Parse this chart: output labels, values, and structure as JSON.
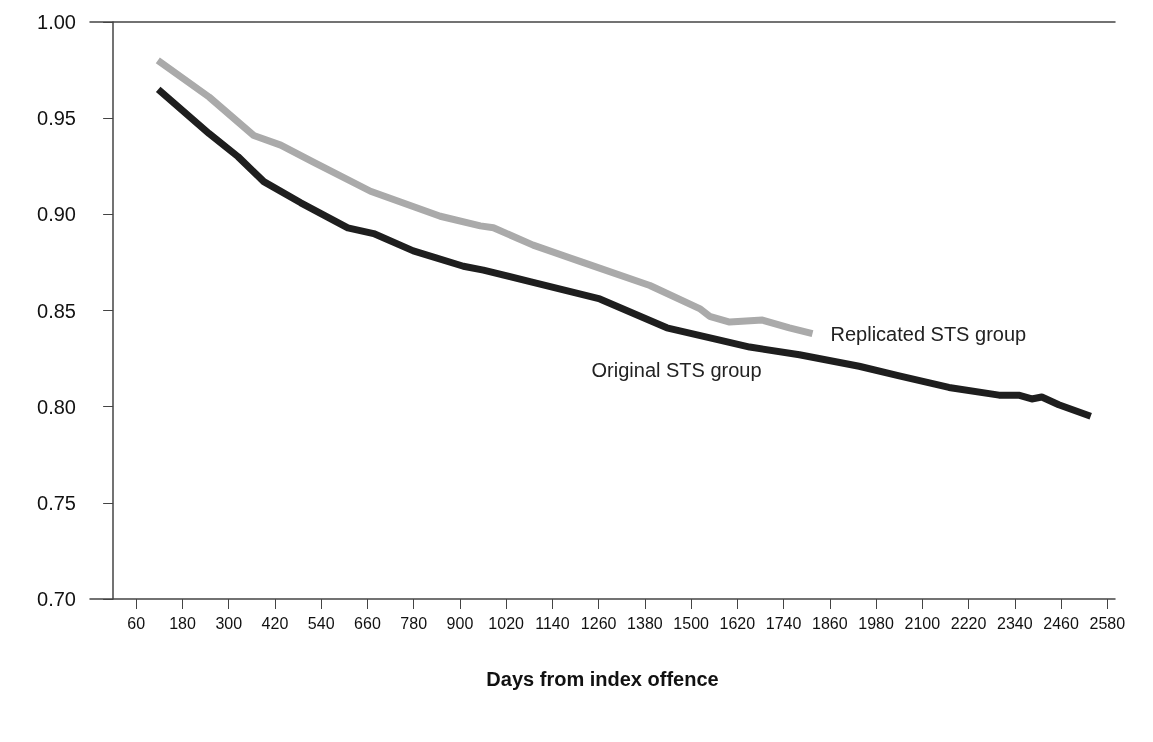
{
  "chart_data": {
    "type": "line",
    "xlabel": "Days from index offence",
    "x": [
      116,
      249,
      365,
      435,
      521,
      668,
      849,
      953,
      987,
      1090,
      1219,
      1393,
      1522,
      1548,
      1600,
      1685,
      1755,
      1815
    ],
    "series": [
      {
        "name": "Replicated STS group",
        "color": "#aaaaaa",
        "values": [
          0.98,
          0.961,
          0.941,
          0.936,
          0.927,
          0.912,
          0.899,
          0.894,
          0.893,
          0.884,
          0.875,
          0.863,
          0.851,
          0.847,
          0.844,
          0.845,
          0.841,
          0.838
        ]
      },
      {
        "name": "Original STS group",
        "color": "#1e1e1e",
        "x": [
          117,
          249,
          324,
          391,
          487,
          609,
          676,
          779,
          909,
          961,
          1082,
          1263,
          1437,
          1566,
          1652,
          1781,
          1936,
          2040,
          2169,
          2299,
          2350,
          2384,
          2410,
          2454,
          2537
        ],
        "values": [
          0.965,
          0.942,
          0.93,
          0.917,
          0.906,
          0.893,
          0.89,
          0.881,
          0.873,
          0.871,
          0.865,
          0.856,
          0.841,
          0.835,
          0.831,
          0.827,
          0.821,
          0.816,
          0.81,
          0.806,
          0.806,
          0.804,
          0.805,
          0.801,
          0.795
        ]
      }
    ],
    "xlim": [
      -60,
      2600
    ],
    "xticks": [
      60,
      180,
      300,
      420,
      540,
      660,
      780,
      900,
      1020,
      1140,
      1260,
      1380,
      1500,
      1620,
      1740,
      1860,
      1980,
      2100,
      2220,
      2340,
      2460,
      2580
    ],
    "ylim": [
      0.7,
      1.0
    ],
    "yticks": [
      {
        "value": 0.7,
        "label": "0.70"
      },
      {
        "value": 0.75,
        "label": "0.75"
      },
      {
        "value": 0.8,
        "label": "0.80"
      },
      {
        "value": 0.85,
        "label": "0.85"
      },
      {
        "value": 0.9,
        "label": "0.90"
      },
      {
        "value": 0.95,
        "label": "0.95"
      },
      {
        "value": 1.0,
        "label": "1.00"
      }
    ],
    "grid": false,
    "legend": false,
    "marker": "none",
    "line_style": "solid"
  }
}
